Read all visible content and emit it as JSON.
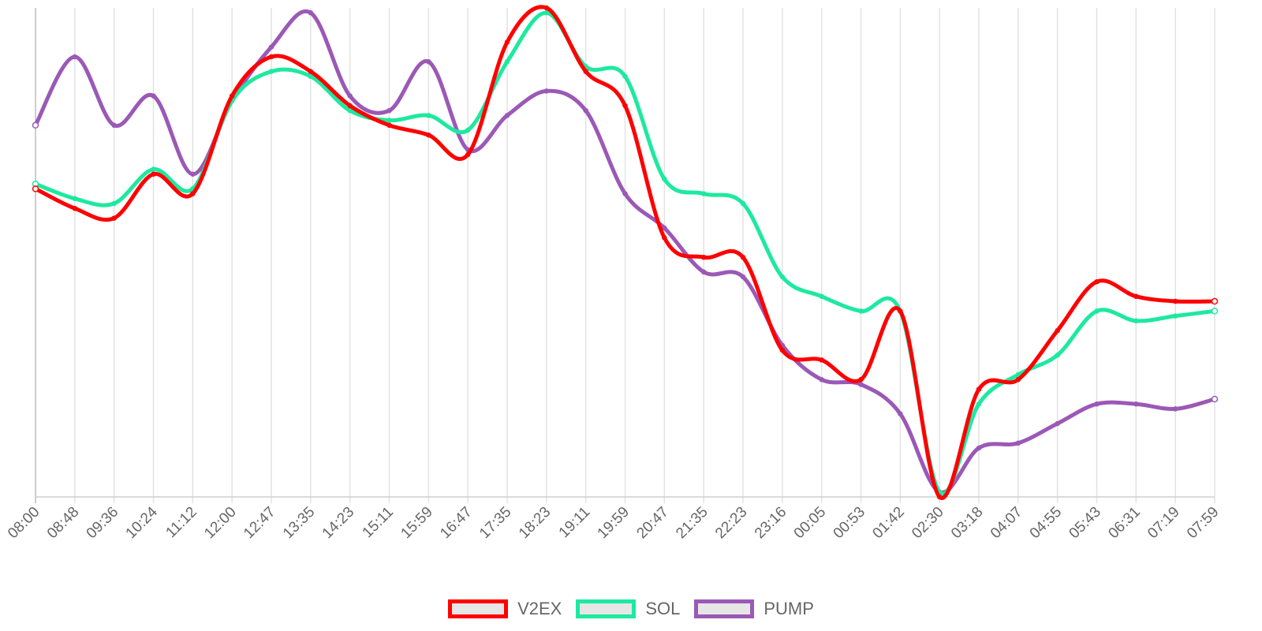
{
  "chart_data": {
    "type": "line",
    "x": [
      "08:00",
      "08:48",
      "09:36",
      "10:24",
      "11:12",
      "12:00",
      "12:47",
      "13:35",
      "14:23",
      "15:11",
      "15:59",
      "16:47",
      "17:35",
      "18:23",
      "19:11",
      "19:59",
      "20:47",
      "21:35",
      "22:23",
      "23:16",
      "00:05",
      "00:53",
      "01:42",
      "02:30",
      "03:18",
      "04:07",
      "04:55",
      "05:43",
      "06:31",
      "07:19",
      "07:59"
    ],
    "ylim": [
      0,
      100
    ],
    "grid": {
      "vertical": true,
      "horizontal": false
    },
    "legend_position": "bottom",
    "series": [
      {
        "name": "V2EX",
        "color": "#ff0000",
        "values": [
          63,
          59,
          57,
          66,
          62,
          82,
          90,
          87,
          80,
          76,
          74,
          70,
          93,
          100,
          87,
          80,
          53,
          49,
          49,
          30,
          28,
          24,
          38,
          0,
          22,
          24,
          34,
          44,
          41,
          40,
          40
        ]
      },
      {
        "name": "SOL",
        "color": "#1de9a0",
        "values": [
          64,
          61,
          60,
          67,
          63,
          81,
          87,
          86,
          79,
          77,
          78,
          75,
          89,
          99,
          88,
          86,
          65,
          62,
          60,
          45,
          41,
          38,
          38,
          1,
          19,
          25,
          29,
          38,
          36,
          37,
          38
        ]
      },
      {
        "name": "PUMP",
        "color": "#9b59b6",
        "values": [
          76,
          90,
          76,
          82,
          66,
          81,
          92,
          99,
          82,
          79,
          89,
          71,
          78,
          83,
          79,
          62,
          55,
          46,
          45,
          31,
          24,
          23,
          17,
          1,
          10,
          11,
          15,
          19,
          19,
          18,
          20
        ]
      }
    ]
  },
  "legend": {
    "items": [
      {
        "label": "V2EX",
        "color": "#ff0000"
      },
      {
        "label": "SOL",
        "color": "#1de9a0"
      },
      {
        "label": "PUMP",
        "color": "#9b59b6"
      }
    ]
  }
}
